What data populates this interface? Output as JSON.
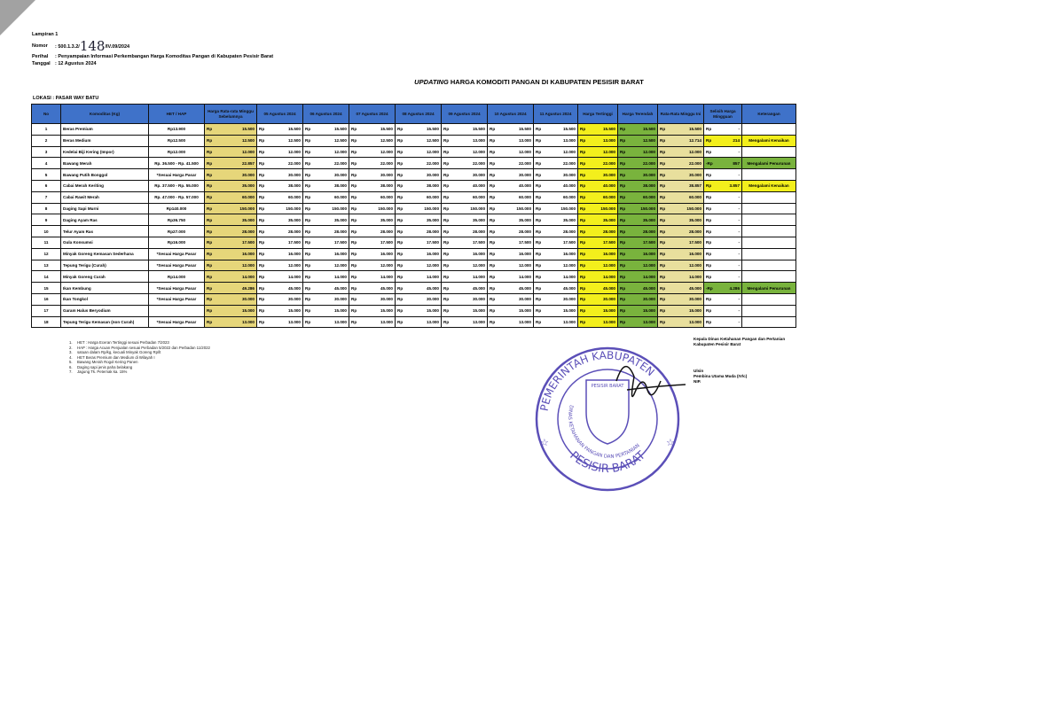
{
  "header": {
    "lampiran": "Lampiran 1",
    "nomor_label": "Nomor",
    "nomor_prefix": ": 500.1.3.2/",
    "nomor_handwritten": "148",
    "nomor_suffix": "/IV.09/2024",
    "perihal_label": "Perihal",
    "perihal": ": Penyampaian Informasi Perkembangan Harga Komoditas Pangan di Kabupaten Pesisir Barat",
    "tanggal_label": "Tanggal",
    "tanggal": ": 12 Agustus 2024"
  },
  "title_italic": "UPDATING",
  "title_rest": " HARGA KOMODITI PANGAN DI KABUPATEN PESISIR BARAT",
  "lokasi": "LOKASI : PASAR WAY BATU",
  "table": {
    "columns": [
      "No",
      "Komoditas (Kg)",
      "HET / HAP",
      "Harga Rata-rata Minggu Sebelumnya",
      "05 Agustus 2024",
      "06 Agustus 2024",
      "07 Agustus 2024",
      "08 Agustus 2024",
      "09 Agustus 2024",
      "10 Agustus 2024",
      "11 Agustus 2024",
      "Harga Tertinggi",
      "Harga Terendah",
      "Rata-Rata Minggu Ini",
      "Selisih Harga Mingguan",
      "Keterangan"
    ],
    "currency": "Rp",
    "rows": [
      {
        "no": "1",
        "name": "Beras Premium",
        "het": "Rp13.900",
        "prev": "15.500",
        "days": [
          "15.500",
          "15.500",
          "15.500",
          "15.500",
          "15.500",
          "15.500",
          "15.500"
        ],
        "hi": "15.500",
        "lo": "15.500",
        "avg": "15.500",
        "diff": "-",
        "ket": "",
        "status": ""
      },
      {
        "no": "2",
        "name": "Beras Medium",
        "het": "Rp12.500",
        "prev": "12.500",
        "days": [
          "12.500",
          "12.500",
          "12.500",
          "12.500",
          "13.000",
          "13.000",
          "13.000"
        ],
        "hi": "13.000",
        "lo": "12.500",
        "avg": "12.714",
        "diff": "214",
        "ket": "Mengalami Kenaikan",
        "status": "up"
      },
      {
        "no": "3",
        "name": "Kedelai Biji Kering (Impor)",
        "het": "Rp12.000",
        "prev": "12.000",
        "days": [
          "12.000",
          "12.000",
          "12.000",
          "12.000",
          "12.000",
          "12.000",
          "12.000"
        ],
        "hi": "12.000",
        "lo": "12.000",
        "avg": "12.000",
        "diff": "-",
        "ket": "",
        "status": ""
      },
      {
        "no": "4",
        "name": "Bawang Merah",
        "het": "Rp. 36.500 - Rp. 41.500",
        "prev": "22.857",
        "days": [
          "22.000",
          "22.000",
          "22.000",
          "22.000",
          "22.000",
          "22.000",
          "22.000"
        ],
        "hi": "22.000",
        "lo": "22.000",
        "avg": "22.000",
        "diff": "857",
        "ket": "Mengalami Penurunan",
        "status": "down"
      },
      {
        "no": "5",
        "name": "Bawang Putih Bonggol",
        "het": "*Sesuai Harga Pasar",
        "prev": "30.000",
        "days": [
          "30.000",
          "30.000",
          "30.000",
          "30.000",
          "30.000",
          "30.000",
          "30.000"
        ],
        "hi": "30.000",
        "lo": "30.000",
        "avg": "30.000",
        "diff": "-",
        "ket": "",
        "status": ""
      },
      {
        "no": "6",
        "name": "Cabai Merah Keriting",
        "het": "Rp. 37.500 - Rp. 55.000",
        "prev": "35.000",
        "days": [
          "38.000",
          "38.000",
          "38.000",
          "38.000",
          "40.000",
          "40.000",
          "40.000"
        ],
        "hi": "40.000",
        "lo": "38.000",
        "avg": "38.857",
        "diff": "3.857",
        "ket": "Mengalami Kenaikan",
        "status": "up"
      },
      {
        "no": "7",
        "name": "Cabai Rawit Merah",
        "het": "Rp. 47.000 - Rp. 57.000",
        "prev": "60.000",
        "days": [
          "60.000",
          "60.000",
          "60.000",
          "60.000",
          "60.000",
          "60.000",
          "60.000"
        ],
        "hi": "60.000",
        "lo": "60.000",
        "avg": "60.000",
        "diff": "-",
        "ket": "",
        "status": ""
      },
      {
        "no": "8",
        "name": "Daging Sapi Murni",
        "het": "Rp140.000",
        "prev": "150.000",
        "days": [
          "150.000",
          "150.000",
          "150.000",
          "150.000",
          "150.000",
          "150.000",
          "150.000"
        ],
        "hi": "150.000",
        "lo": "150.000",
        "avg": "150.000",
        "diff": "-",
        "ket": "",
        "status": ""
      },
      {
        "no": "9",
        "name": "Daging Ayam Ras",
        "het": "Rp36.750",
        "prev": "35.000",
        "days": [
          "35.000",
          "35.000",
          "35.000",
          "35.000",
          "35.000",
          "35.000",
          "35.000"
        ],
        "hi": "35.000",
        "lo": "35.000",
        "avg": "35.000",
        "diff": "-",
        "ket": "",
        "status": ""
      },
      {
        "no": "10",
        "name": "Telur Ayam Ras",
        "het": "Rp27.000",
        "prev": "28.000",
        "days": [
          "28.000",
          "28.000",
          "28.000",
          "28.000",
          "28.000",
          "28.000",
          "28.000"
        ],
        "hi": "28.000",
        "lo": "28.000",
        "avg": "28.000",
        "diff": "-",
        "ket": "",
        "status": ""
      },
      {
        "no": "11",
        "name": "Gula Konsumsi",
        "het": "Rp16.000",
        "prev": "17.500",
        "days": [
          "17.500",
          "17.500",
          "17.500",
          "17.500",
          "17.500",
          "17.500",
          "17.500"
        ],
        "hi": "17.500",
        "lo": "17.500",
        "avg": "17.500",
        "diff": "-",
        "ket": "",
        "status": ""
      },
      {
        "no": "12",
        "name": "Minyak Goreng Kemasan Sederhana",
        "het": "*Sesuai Harga Pasar",
        "prev": "16.000",
        "days": [
          "16.000",
          "16.000",
          "16.000",
          "16.000",
          "16.000",
          "16.000",
          "16.000"
        ],
        "hi": "16.000",
        "lo": "16.000",
        "avg": "16.000",
        "diff": "-",
        "ket": "",
        "status": ""
      },
      {
        "no": "13",
        "name": "Tepung Terigu (Curah)",
        "het": "*Sesuai Harga Pasar",
        "prev": "12.000",
        "days": [
          "12.000",
          "12.000",
          "12.000",
          "12.000",
          "12.000",
          "12.000",
          "12.000"
        ],
        "hi": "12.000",
        "lo": "12.000",
        "avg": "12.000",
        "diff": "-",
        "ket": "",
        "status": ""
      },
      {
        "no": "14",
        "name": "Minyak Goreng Curah",
        "het": "Rp14.000",
        "prev": "14.000",
        "days": [
          "14.000",
          "14.000",
          "14.000",
          "14.000",
          "14.000",
          "14.000",
          "14.000"
        ],
        "hi": "14.000",
        "lo": "14.000",
        "avg": "14.000",
        "diff": "-",
        "ket": "",
        "status": ""
      },
      {
        "no": "15",
        "name": "Ikan Kembung",
        "het": "*Sesuai Harga Pasar",
        "prev": "49.286",
        "days": [
          "45.000",
          "45.000",
          "45.000",
          "45.000",
          "45.000",
          "45.000",
          "45.000"
        ],
        "hi": "45.000",
        "lo": "45.000",
        "avg": "45.000",
        "diff": "4.286",
        "ket": "Mengalami Penurunan",
        "status": "down"
      },
      {
        "no": "16",
        "name": "Ikan Tongkol",
        "het": "*Sesuai Harga Pasar",
        "prev": "30.000",
        "days": [
          "30.000",
          "30.000",
          "30.000",
          "30.000",
          "30.000",
          "30.000",
          "30.000"
        ],
        "hi": "30.000",
        "lo": "30.000",
        "avg": "30.000",
        "diff": "-",
        "ket": "",
        "status": ""
      },
      {
        "no": "17",
        "name": "Garam Halus Beryodium",
        "het": "",
        "prev": "15.000",
        "days": [
          "15.000",
          "15.000",
          "15.000",
          "15.000",
          "15.000",
          "15.000",
          "15.000"
        ],
        "hi": "15.000",
        "lo": "15.000",
        "avg": "15.000",
        "diff": "-",
        "ket": "",
        "status": ""
      },
      {
        "no": "18",
        "name": "Tepung Terigu Kemasan (non Curah)",
        "het": "*Sesuai Harga Pasar",
        "prev": "13.000",
        "days": [
          "13.000",
          "13.000",
          "13.000",
          "13.000",
          "13.000",
          "13.000",
          "13.000"
        ],
        "hi": "13.000",
        "lo": "13.000",
        "avg": "13.000",
        "diff": "-",
        "ket": "",
        "status": ""
      }
    ]
  },
  "notes": [
    {
      "n": "1.",
      "text": "HET : Harga Eceran Tertinggi sesuai Perbadan 7/2023"
    },
    {
      "n": "2.",
      "text": "HAP : Harga Acuan Penjualan sesuai Perbadan 5/2022 dan Perbadan 11/2022"
    },
    {
      "n": "3.",
      "text": "satuan dalam Rp/kg, kecuali Minyak Goreng Rp/lt"
    },
    {
      "n": "4.",
      "text": "HET Beras Premium dan Medium di Wilayah I"
    },
    {
      "n": "5.",
      "text": "Bawang Merah Rogol Kering Panen"
    },
    {
      "n": "6.",
      "text": "Daging sapi jenis paha belakang"
    },
    {
      "n": "7.",
      "text": "Jagung Tk. Peternak ka. 15%"
    }
  ],
  "signature": {
    "line1": "Kepala Dinas Ketahanan Pangan dan Pertanian",
    "line2": "Kabupaten Pesisir Barat",
    "name": "Ulsin",
    "rank": "Pembina Utama Muda (IV/c)",
    "nip": "NIP."
  },
  "stamp": {
    "outer_top": "PEMERINTAH KABUPATEN",
    "inner": "DINAS KETAHANAN PANGAN DAN PERTANIAN",
    "bottom": "PESISIR BARAT",
    "emblem": "PESISIR BARAT",
    "color": "#5b4fb8"
  },
  "colors": {
    "header": "#3f72c9",
    "highest": "#f3ef1c",
    "lowest": "#79b33d",
    "increase": "#f3ef1c",
    "decrease": "#79b33d"
  }
}
